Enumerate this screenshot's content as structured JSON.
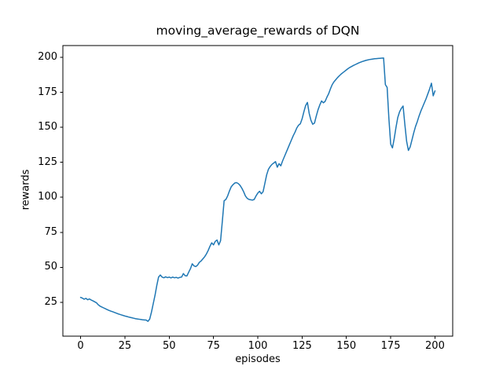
{
  "figure": {
    "title": "moving_average_rewards of DQN",
    "xlabel": "episodes",
    "ylabel": "rewards"
  },
  "chart_data": {
    "type": "line",
    "title": "moving_average_rewards of DQN",
    "xlabel": "episodes",
    "ylabel": "rewards",
    "grid": false,
    "legend": false,
    "background": "#ffffff",
    "axis_color": "#000000",
    "xlim": [
      -10,
      210
    ],
    "ylim": [
      0.8,
      208.4
    ],
    "xticks": [
      0,
      25,
      50,
      75,
      100,
      125,
      150,
      175,
      200
    ],
    "yticks": [
      25,
      50,
      75,
      100,
      125,
      150,
      175,
      200
    ],
    "series": [
      {
        "name": "moving_average_rewards",
        "color": "#1f77b4",
        "line_width": 1.5,
        "x_start": 0,
        "x_step": 1,
        "values": [
          28.5,
          28.0,
          27.2,
          27.8,
          26.8,
          27.4,
          26.6,
          26.0,
          25.3,
          24.6,
          23.2,
          22.2,
          21.6,
          21.0,
          20.4,
          19.8,
          19.2,
          18.7,
          18.3,
          17.8,
          17.3,
          16.8,
          16.4,
          16.0,
          15.6,
          15.2,
          14.9,
          14.5,
          14.2,
          13.9,
          13.6,
          13.3,
          13.1,
          12.9,
          12.7,
          12.5,
          12.4,
          12.3,
          11.4,
          13.0,
          18.0,
          24.0,
          30.0,
          37.0,
          43.0,
          44.5,
          43.0,
          42.5,
          43.2,
          42.6,
          43.0,
          42.4,
          43.0,
          42.5,
          42.8,
          42.3,
          42.8,
          43.0,
          45.5,
          44.0,
          43.8,
          46.5,
          49.0,
          52.5,
          51.0,
          50.5,
          51.5,
          53.5,
          54.5,
          56.0,
          57.5,
          59.5,
          62.0,
          65.0,
          67.5,
          66.0,
          68.5,
          69.5,
          66.0,
          69.0,
          83.0,
          97.5,
          98.5,
          101.0,
          104.5,
          107.5,
          109.0,
          110.2,
          110.5,
          109.8,
          108.5,
          106.5,
          104.0,
          101.0,
          99.3,
          98.5,
          98.2,
          98.0,
          98.5,
          101.0,
          103.0,
          104.3,
          102.5,
          104.0,
          110.0,
          116.0,
          120.0,
          122.0,
          123.5,
          124.5,
          125.5,
          121.5,
          124.0,
          122.5,
          126.0,
          129.0,
          132.0,
          135.0,
          138.0,
          141.0,
          144.0,
          146.5,
          149.5,
          151.5,
          152.5,
          156.0,
          161.0,
          165.5,
          167.8,
          160.0,
          155.0,
          152.2,
          153.0,
          158.0,
          162.5,
          166.0,
          168.8,
          167.5,
          168.5,
          171.5,
          174.0,
          177.5,
          180.5,
          182.5,
          184.0,
          185.5,
          186.8,
          188.0,
          189.0,
          190.0,
          191.0,
          192.0,
          192.8,
          193.5,
          194.2,
          194.8,
          195.4,
          196.0,
          196.5,
          197.0,
          197.4,
          197.8,
          198.1,
          198.4,
          198.6,
          198.8,
          199.0,
          199.1,
          199.2,
          199.3,
          199.4,
          199.5,
          180.5,
          178.5,
          156.0,
          138.0,
          135.3,
          142.0,
          150.0,
          157.0,
          161.0,
          163.5,
          165.2,
          152.0,
          140.0,
          133.5,
          136.0,
          141.0,
          146.0,
          150.5,
          154.0,
          158.0,
          161.5,
          164.5,
          167.5,
          170.5,
          174.0,
          177.5,
          181.5,
          172.5,
          176.0
        ]
      }
    ]
  }
}
